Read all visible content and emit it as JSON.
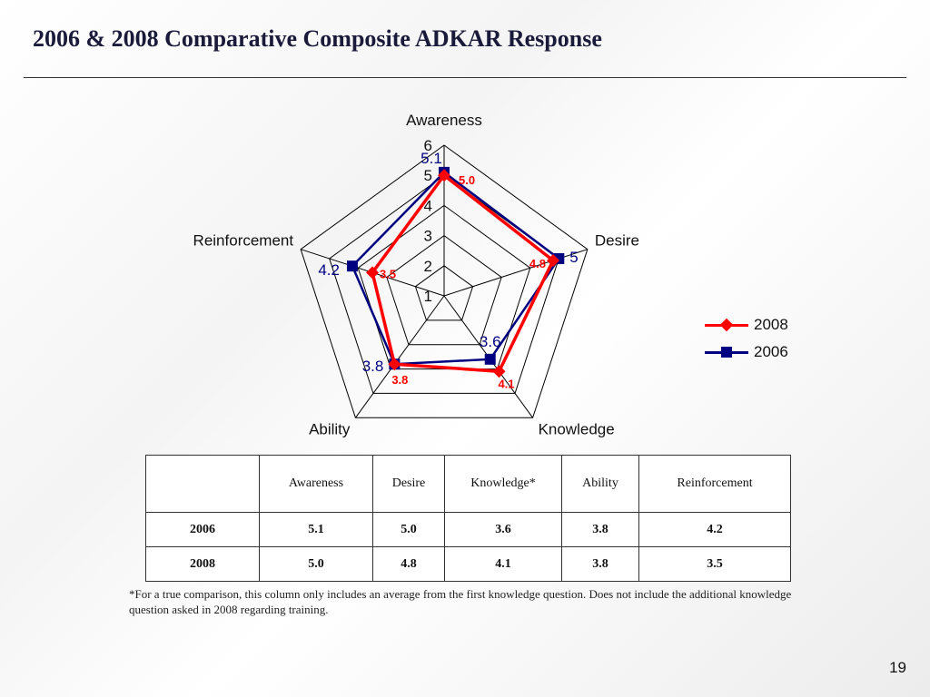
{
  "slide": {
    "title": "2006 & 2008 Comparative Composite ADKAR Response",
    "footnote": "*For a true comparison, this column only includes an average from the first knowledge question.  Does not include the additional knowledge question asked in 2008 regarding training.",
    "page_number": "19"
  },
  "chart_data": {
    "type": "radar",
    "title": "",
    "categories": [
      "Awareness",
      "Desire",
      "Knowledge",
      "Ability",
      "Reinforcement"
    ],
    "radial_ticks": [
      "1",
      "2",
      "3",
      "4",
      "5",
      "6"
    ],
    "rmin": 1,
    "rmax": 6,
    "series": [
      {
        "name": "2008",
        "values": [
          5.0,
          4.8,
          4.1,
          3.8,
          3.5
        ],
        "labels": [
          "5.0",
          "4.8",
          "4.1",
          "3.8",
          "3.5"
        ],
        "color": "#ff0000",
        "marker": "diamond"
      },
      {
        "name": "2006",
        "values": [
          5.1,
          5.0,
          3.6,
          3.8,
          4.2
        ],
        "labels": [
          "5.1",
          "5",
          "3.6",
          "3.8",
          "4.2"
        ],
        "color": "#000080",
        "marker": "square"
      }
    ],
    "legend_position": "right",
    "grid": true
  },
  "table": {
    "headers": [
      "",
      "Awareness",
      "Desire",
      "Knowledge*",
      "Ability",
      "Reinforcement"
    ],
    "rows": [
      [
        "2006",
        "5.1",
        "5.0",
        "3.6",
        "3.8",
        "4.2"
      ],
      [
        "2008",
        "5.0",
        "4.8",
        "4.1",
        "3.8",
        "3.5"
      ]
    ]
  },
  "legend": {
    "items": [
      {
        "label": "2008",
        "color": "#ff0000",
        "marker": "diamond"
      },
      {
        "label": "2006",
        "color": "#000080",
        "marker": "square"
      }
    ]
  }
}
